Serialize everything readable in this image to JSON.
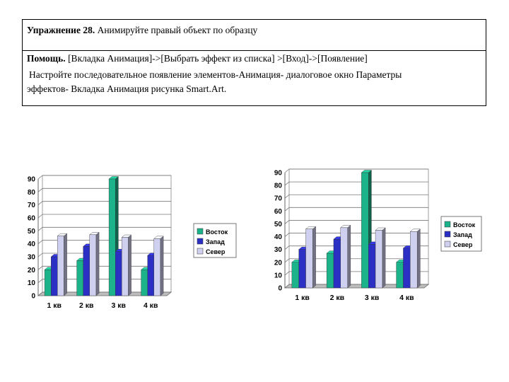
{
  "task": {
    "title_bold": "Упражнение 28.",
    "title_rest": " Анимируйте правый объект по образцу",
    "help_bold": "Помощь.",
    "help_line1": " [Вкладка Анимация]->[Выбрать  эффект из списка] >[Вход]->[Появление]",
    "help_line2": "Настройте  последовательное появление элементов-Анимация- диалоговое окно Параметры",
    "help_line3": "эффектов- Вкладка  Анимация рисунка Smart.Art."
  },
  "colors": {
    "vostok": "#1db38a",
    "zapad": "#2b2fc4",
    "sever": "#cfd0f0"
  },
  "chart_data": [
    {
      "type": "bar",
      "categories": [
        "1 кв",
        "2 кв",
        "3 кв",
        "4 кв"
      ],
      "series": [
        {
          "name": "Восток",
          "values": [
            20,
            27,
            90,
            20
          ]
        },
        {
          "name": "Запад",
          "values": [
            30,
            38,
            34,
            31
          ]
        },
        {
          "name": "Север",
          "values": [
            46,
            47,
            45,
            44
          ]
        }
      ],
      "yticks": [
        "0",
        "10",
        "20",
        "30",
        "40",
        "50",
        "60",
        "70",
        "80",
        "90"
      ],
      "ylim": [
        0,
        90
      ],
      "legend": "right"
    },
    {
      "type": "bar",
      "categories": [
        "1 кв",
        "2 кв",
        "3 кв",
        "4 кв"
      ],
      "series": [
        {
          "name": "Восток",
          "values": [
            20,
            27,
            90,
            20
          ]
        },
        {
          "name": "Запад",
          "values": [
            30,
            38,
            34,
            31
          ]
        },
        {
          "name": "Север",
          "values": [
            46,
            47,
            45,
            44
          ]
        }
      ],
      "yticks": [
        "0",
        "10",
        "20",
        "30",
        "40",
        "50",
        "60",
        "70",
        "80",
        "90"
      ],
      "ylim": [
        0,
        90
      ],
      "legend": "right"
    }
  ]
}
